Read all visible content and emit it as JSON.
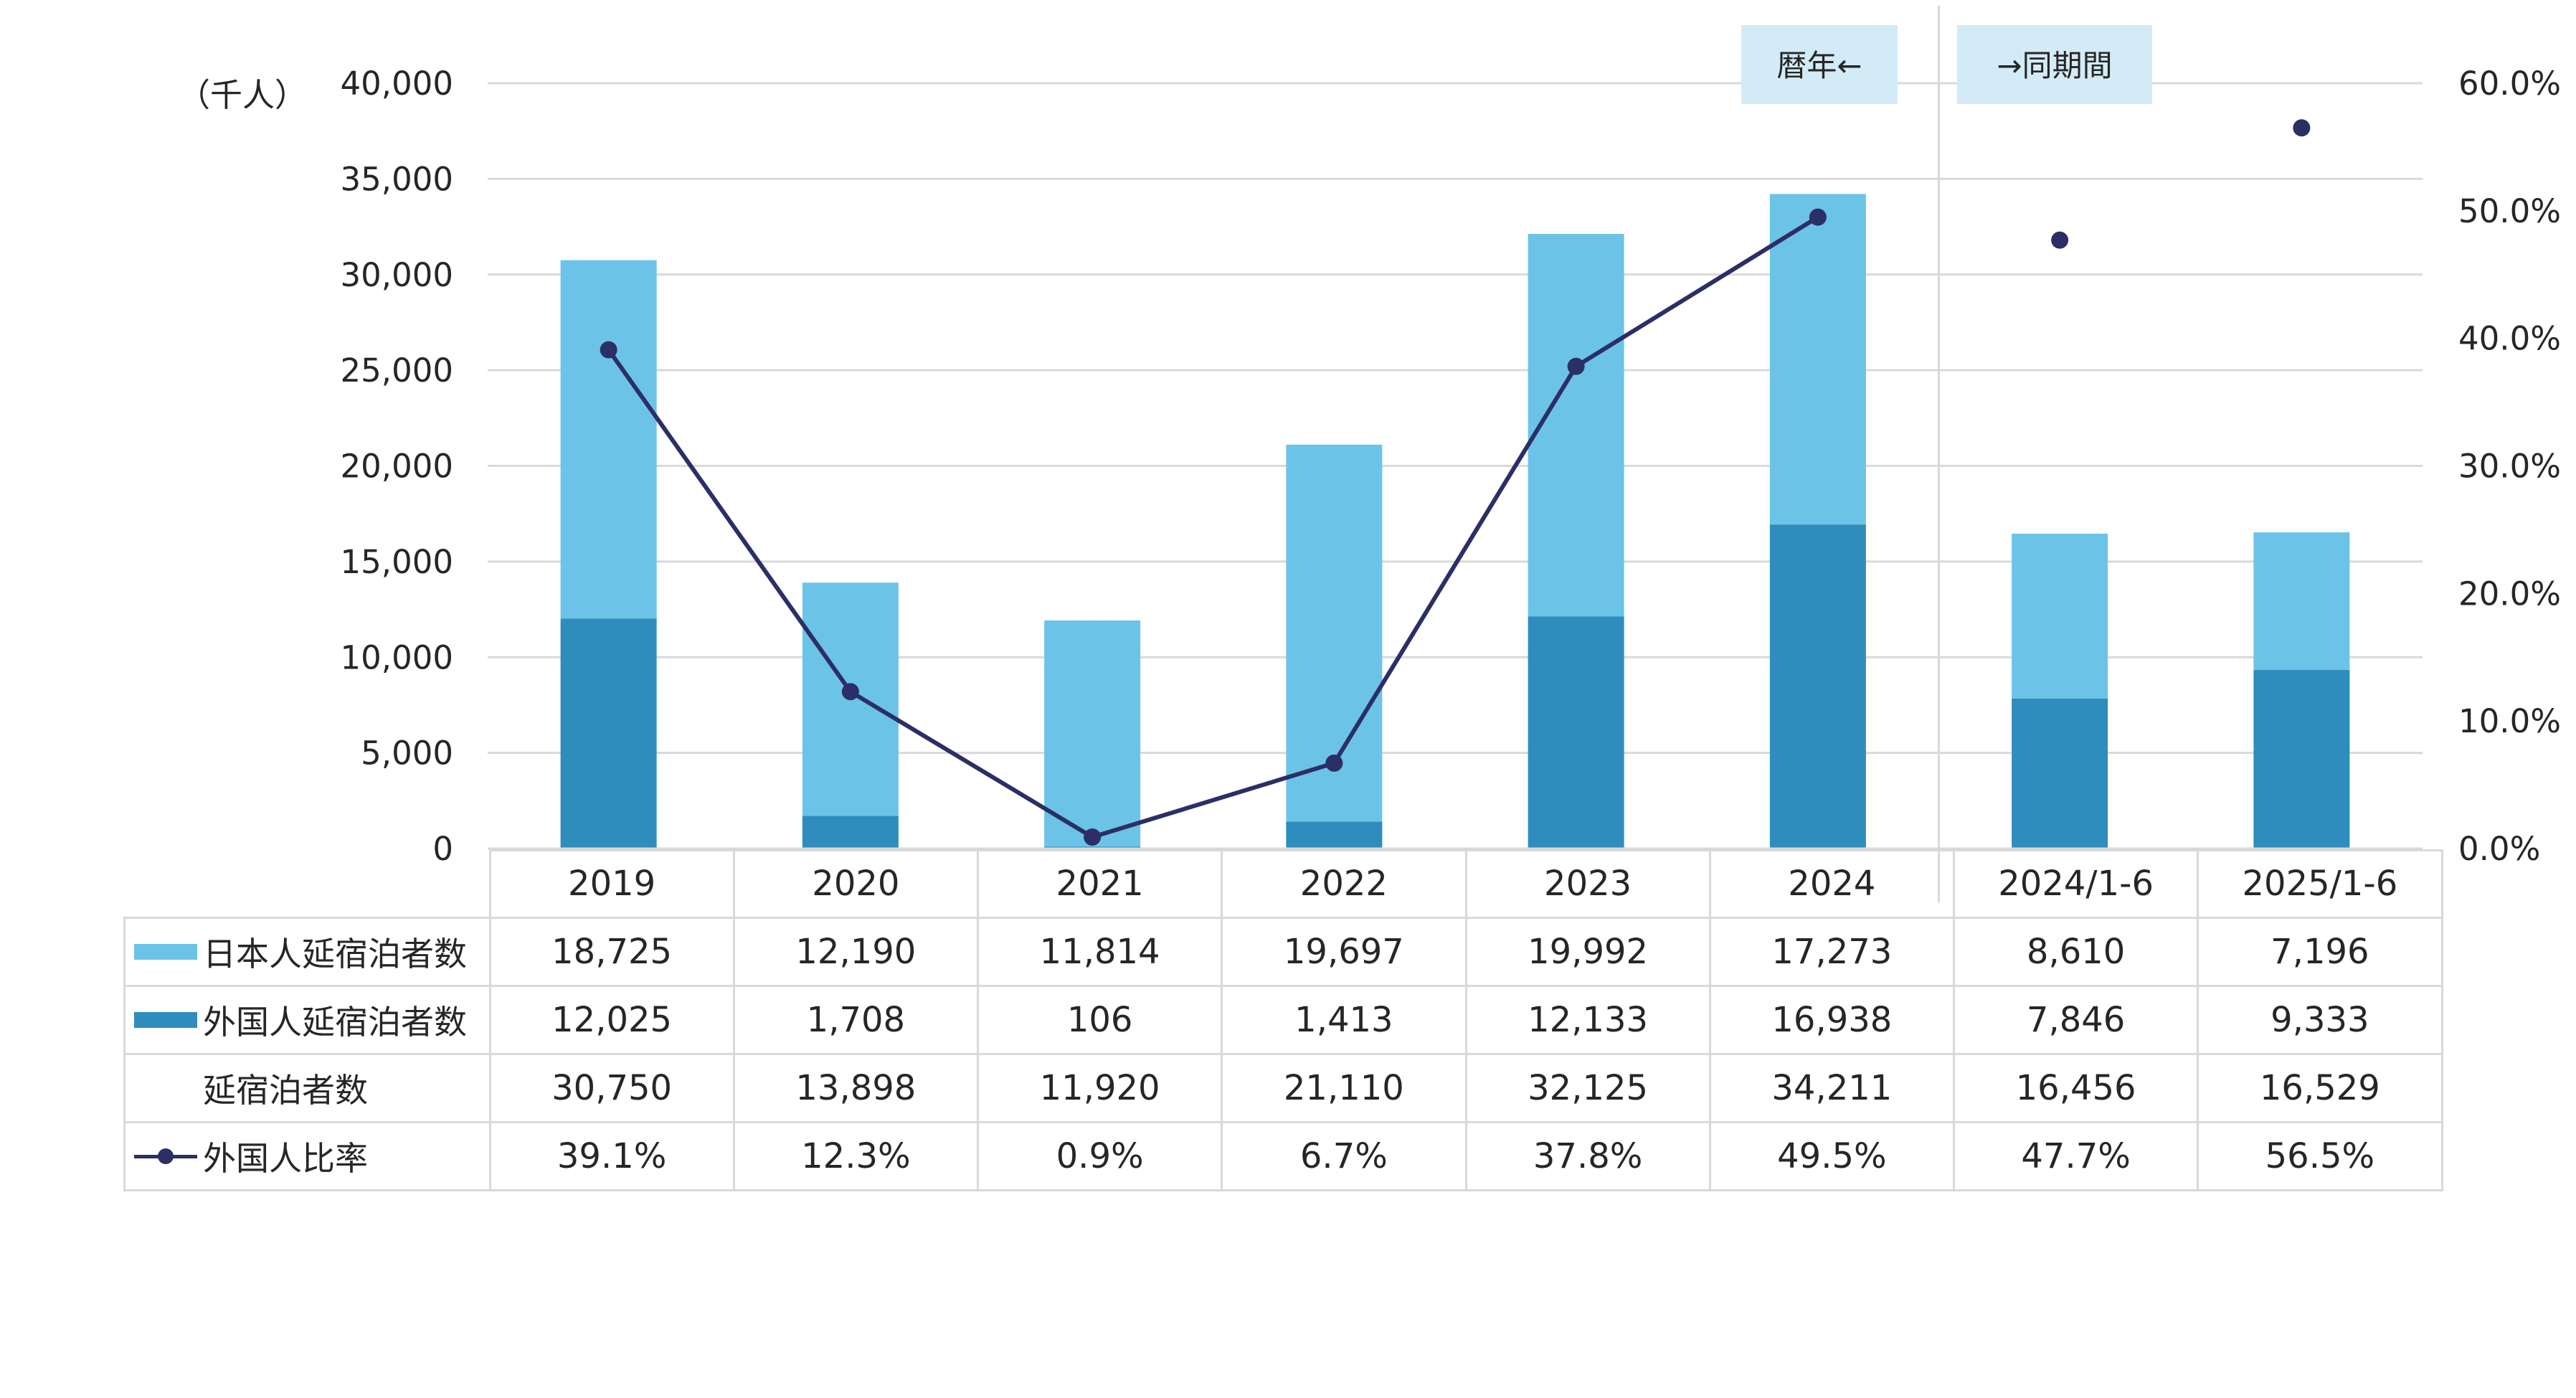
{
  "chart_data": {
    "type": "bar+line",
    "unit_label": "（千人）",
    "categories": [
      "2019",
      "2020",
      "2021",
      "2022",
      "2023",
      "2024",
      "2024/1-6",
      "2025/1-6"
    ],
    "ylim_left": [
      0,
      40000
    ],
    "yticks_left": [
      "0",
      "5,000",
      "10,000",
      "15,000",
      "20,000",
      "25,000",
      "30,000",
      "35,000",
      "40,000"
    ],
    "ylim_right": [
      0,
      60
    ],
    "yticks_right": [
      "0.0%",
      "10.0%",
      "20.0%",
      "30.0%",
      "40.0%",
      "50.0%",
      "60.0%"
    ],
    "grid": true,
    "annotations": [
      "暦年←",
      "→同期間"
    ],
    "series": [
      {
        "name": "日本人延宿泊者数",
        "kind": "bar-stack",
        "color": "#6cc3e8",
        "values": [
          18725,
          12190,
          11814,
          19697,
          19992,
          17273,
          8610,
          7196
        ],
        "labels": [
          "18,725",
          "12,190",
          "11,814",
          "19,697",
          "19,992",
          "17,273",
          "8,610",
          "7,196"
        ]
      },
      {
        "name": "外国人延宿泊者数",
        "kind": "bar-stack",
        "color": "#2e8dbd",
        "values": [
          12025,
          1708,
          106,
          1413,
          12133,
          16938,
          7846,
          9333
        ],
        "labels": [
          "12,025",
          "1,708",
          "106",
          "1,413",
          "12,133",
          "16,938",
          "7,846",
          "9,333"
        ]
      },
      {
        "name": "延宿泊者数",
        "kind": "total",
        "values": [
          30750,
          13898,
          11920,
          21110,
          32125,
          34211,
          16456,
          16529
        ],
        "labels": [
          "30,750",
          "13,898",
          "11,920",
          "21,110",
          "32,125",
          "34,211",
          "16,456",
          "16,529"
        ]
      },
      {
        "name": "外国人比率",
        "kind": "line-right-axis",
        "color": "#2b2f66",
        "values": [
          39.1,
          12.3,
          0.9,
          6.7,
          37.8,
          49.5,
          47.7,
          56.5
        ],
        "labels": [
          "39.1%",
          "12.3%",
          "0.9%",
          "6.7%",
          "37.8%",
          "49.5%",
          "47.7%",
          "56.5%"
        ]
      }
    ]
  }
}
